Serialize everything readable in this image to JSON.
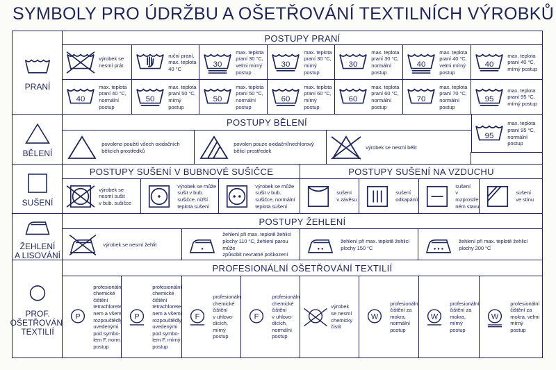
{
  "title": "SYMBOLY PRO ÚDRŽBU A OŠETŘOVÁNÍ TEXTILNÍCH VÝROBKŮ",
  "colors": {
    "ink": "#1f2656",
    "background": "#ffffff"
  },
  "washing": {
    "label": "PRANÍ",
    "label_icon": "wash-tub-icon",
    "header": "POSTUPY PRANÍ",
    "items": [
      {
        "icon": "tub",
        "crossed": true,
        "text": "výrobek se\nnesmí prát"
      },
      {
        "icon": "tub",
        "hand": true,
        "text": "ruční praní,\nmax. teplota\n40 °C"
      },
      {
        "icon": "tub",
        "temp": "30",
        "bars": 2,
        "text": "max. teplota\npraní 30 °C,\nvelmi mírný\npostup"
      },
      {
        "icon": "tub",
        "temp": "30",
        "bars": 1,
        "text": "max. teplota\npraní 30 °C,\nmírný postup"
      },
      {
        "icon": "tub",
        "temp": "30",
        "bars": 0,
        "text": "max. teplota\npraní 30 °C,\nnormální\npostup"
      },
      {
        "icon": "tub",
        "temp": "40",
        "bars": 2,
        "text": "max. teplota\npraní 40 °C,\nvelmi mírný\npostup"
      },
      {
        "icon": "tub",
        "temp": "40",
        "bars": 1,
        "text": "max. teplota\npraní 40 °C,\nmírný postup"
      },
      {
        "icon": "tub",
        "temp": "40",
        "bars": 0,
        "text": "max. teplota\npraní 40 °C,\nnormální\npostup"
      },
      {
        "icon": "tub",
        "temp": "50",
        "bars": 1,
        "text": "max. teplota\npraní 50 °C,\nmírný postup"
      },
      {
        "icon": "tub",
        "temp": "50",
        "bars": 0,
        "text": "max. teplota\npraní 50 °C,\nnormální\npostup"
      },
      {
        "icon": "tub",
        "temp": "60",
        "bars": 1,
        "text": "max. teplota\npraní 60 °C,\nmírný postup"
      },
      {
        "icon": "tub",
        "temp": "60",
        "bars": 0,
        "text": "max. teplota\npraní 60 °C,\nnormální\npostup"
      },
      {
        "icon": "tub",
        "temp": "70",
        "bars": 0,
        "text": "max. teplota\npraní 70 °C,\nnormální\npostup"
      },
      {
        "icon": "tub",
        "temp": "95",
        "bars": 1,
        "text": "max. teplota\npraní 95 °C,\nmírný postup"
      },
      {
        "icon": "tub",
        "temp": "95",
        "bars": 0,
        "text": "max. teplota\npraní 95 °C,\nnormální\npostup"
      }
    ]
  },
  "bleaching": {
    "label": "BĚLENÍ",
    "label_icon": "triangle-icon",
    "header": "POSTUPY BĚLENÍ",
    "items": [
      {
        "icon": "triangle",
        "text": "povoleno použití všech oxidačních\nbělicích prostředků"
      },
      {
        "icon": "triangle",
        "striped": true,
        "text": "povolen pouze oxidační/nechlorový\nbělicí prostředek"
      },
      {
        "icon": "triangle",
        "crossed": true,
        "text": "výrobek se nesmí bělit"
      }
    ]
  },
  "drying": {
    "label": "SUŠENÍ",
    "label_icon": "square-icon",
    "drum_header": "POSTUPY SUŠENÍ V BUBNOVÉ SUŠIČCE",
    "air_header": "POSTUPY SUŠENÍ NA VZDUCHU",
    "drum_items": [
      {
        "icon": "drum",
        "crossed": true,
        "text": "výrobek se\nnesmí sušit\nv bub. sušičce"
      },
      {
        "icon": "drum",
        "dots": 1,
        "text": "výrobek se může\nsušit v bub.\nsušičce, nižší\nteplota sušení"
      },
      {
        "icon": "drum",
        "dots": 2,
        "text": "výrobek se může\nsušit v bub.\nsušičce, normální\nteplota sušení"
      }
    ],
    "air_items": [
      {
        "icon": "line-dry",
        "text": "sušení\nv závěsu"
      },
      {
        "icon": "drip-dry",
        "text": "sušení\nodkapáním"
      },
      {
        "icon": "flat-dry",
        "text": "sušení\nv rozprostře-\nném stavu"
      },
      {
        "icon": "shade-dry",
        "text": "sušení\nve stínu"
      }
    ]
  },
  "ironing": {
    "label": "ŽEHLENÍ\nA LISOVÁNÍ",
    "label_icon": "iron-icon",
    "header": "POSTUPY ŽEHLENÍ",
    "items": [
      {
        "icon": "iron",
        "crossed": true,
        "text": "výrobek se nesmí žehlit"
      },
      {
        "icon": "iron",
        "dots": 1,
        "text": "žehlení při max. teplotě žehlicí\nplochy 110 °C, žehlení parou může\nzpůsobit nevratné poškození"
      },
      {
        "icon": "iron",
        "dots": 2,
        "text": "žehlení při max. teplotě žehlicí\nplochy 150 °C"
      },
      {
        "icon": "iron",
        "dots": 3,
        "text": "žehlení při max. teplotě žehlicí\nplochy 200 °C"
      }
    ]
  },
  "professional": {
    "label": "PROF.\nOŠETŘOVÁNÍ\nTEXTILIÍ",
    "label_icon": "circle-icon",
    "header": "PROFESIONÁLNÍ OŠETŘOVÁNÍ TEXTILIÍ",
    "items": [
      {
        "icon": "circle",
        "letter": "P",
        "bars": 0,
        "text": "profesionální\nchemické\nčištění\ntetrachlorete-\nnem a všemi\nrozpouštědly\nuvedenými\npod symbo-\nlem F, norm.\npostup"
      },
      {
        "icon": "circle",
        "letter": "P",
        "bars": 1,
        "text": "profesionální\nchemické\nčištění\ntetrachlorete-\nnem a všemi\nrozpouštědly\nuvedenými\npod symbo-\nlem F, mírný\npostup"
      },
      {
        "icon": "circle",
        "letter": "F",
        "bars": 1,
        "text": "profesionální\nchemické\nčištění\nv uhlovo-\ndících,\nmírný\npostup"
      },
      {
        "icon": "circle",
        "letter": "F",
        "bars": 0,
        "text": "profesionální\nchemické\nčištění\nv uhlovo-\ndících,\nnormální\npostup"
      },
      {
        "icon": "circle",
        "crossed": true,
        "text": "výrobek\nse nesmí\nchemicky\nčistit"
      },
      {
        "icon": "circle",
        "letter": "W",
        "bars": 0,
        "text": "profesionální\nčištění za\nmokra,\nnormální\npostup"
      },
      {
        "icon": "circle",
        "letter": "W",
        "bars": 1,
        "text": "profesionální\nčištění za\nmokra,\nmírný\npostup"
      },
      {
        "icon": "circle",
        "letter": "W",
        "bars": 2,
        "text": "profesionální\nčištění za\nmokra, velmi\nmírný\npostup"
      }
    ]
  }
}
